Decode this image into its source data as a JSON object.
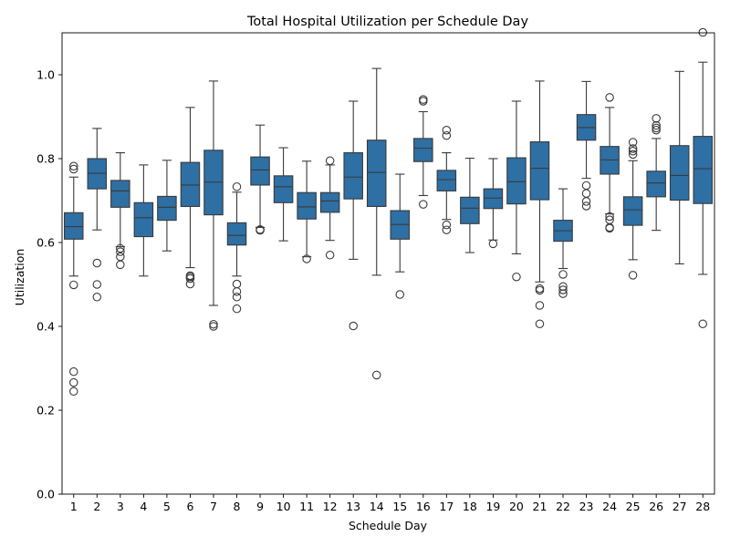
{
  "chart_data": {
    "type": "box",
    "title": "Total Hospital Utilization per Schedule Day",
    "xlabel": "Schedule Day",
    "ylabel": "Utilization",
    "ylim": [
      0.0,
      1.1
    ],
    "yticks": [
      "0.0",
      "0.2",
      "0.4",
      "0.6",
      "0.8",
      "1.0"
    ],
    "grid": false,
    "box_color": "#2e6fa4",
    "line_color": "#3a3a3a",
    "categories": [
      "1",
      "2",
      "3",
      "4",
      "5",
      "6",
      "7",
      "8",
      "9",
      "10",
      "11",
      "12",
      "13",
      "14",
      "15",
      "16",
      "17",
      "18",
      "19",
      "20",
      "21",
      "22",
      "23",
      "24",
      "25",
      "26",
      "27",
      "28"
    ],
    "boxes": [
      {
        "day": "1",
        "whislo": 0.52,
        "q1": 0.608,
        "med": 0.638,
        "q3": 0.671,
        "whishi": 0.756,
        "fliers": [
          0.499,
          0.292,
          0.266,
          0.245,
          0.775,
          0.782
        ]
      },
      {
        "day": "2",
        "whislo": 0.63,
        "q1": 0.728,
        "med": 0.765,
        "q3": 0.8,
        "whishi": 0.872,
        "fliers": [
          0.551,
          0.5,
          0.47
        ]
      },
      {
        "day": "3",
        "whislo": 0.59,
        "q1": 0.684,
        "med": 0.723,
        "q3": 0.748,
        "whishi": 0.814,
        "fliers": [
          0.586,
          0.578,
          0.566,
          0.547
        ]
      },
      {
        "day": "4",
        "whislo": 0.52,
        "q1": 0.614,
        "med": 0.659,
        "q3": 0.695,
        "whishi": 0.785,
        "fliers": []
      },
      {
        "day": "5",
        "whislo": 0.58,
        "q1": 0.653,
        "med": 0.684,
        "q3": 0.71,
        "whishi": 0.796,
        "fliers": []
      },
      {
        "day": "6",
        "whislo": 0.54,
        "q1": 0.686,
        "med": 0.737,
        "q3": 0.791,
        "whishi": 0.922,
        "fliers": [
          0.521,
          0.518,
          0.514,
          0.501
        ]
      },
      {
        "day": "7",
        "whislo": 0.45,
        "q1": 0.666,
        "med": 0.744,
        "q3": 0.82,
        "whishi": 0.985,
        "fliers": [
          0.405,
          0.4
        ]
      },
      {
        "day": "8",
        "whislo": 0.52,
        "q1": 0.594,
        "med": 0.617,
        "q3": 0.647,
        "whishi": 0.72,
        "fliers": [
          0.733,
          0.501,
          0.483,
          0.47,
          0.442
        ]
      },
      {
        "day": "9",
        "whislo": 0.636,
        "q1": 0.737,
        "med": 0.773,
        "q3": 0.804,
        "whishi": 0.88,
        "fliers": [
          0.631,
          0.629
        ]
      },
      {
        "day": "10",
        "whislo": 0.604,
        "q1": 0.695,
        "med": 0.733,
        "q3": 0.759,
        "whishi": 0.826,
        "fliers": []
      },
      {
        "day": "11",
        "whislo": 0.566,
        "q1": 0.656,
        "med": 0.685,
        "q3": 0.719,
        "whishi": 0.794,
        "fliers": [
          0.561
        ]
      },
      {
        "day": "12",
        "whislo": 0.605,
        "q1": 0.672,
        "med": 0.699,
        "q3": 0.719,
        "whishi": 0.785,
        "fliers": [
          0.795,
          0.57
        ]
      },
      {
        "day": "13",
        "whislo": 0.56,
        "q1": 0.704,
        "med": 0.756,
        "q3": 0.814,
        "whishi": 0.937,
        "fliers": [
          0.401
        ]
      },
      {
        "day": "14",
        "whislo": 0.522,
        "q1": 0.686,
        "med": 0.767,
        "q3": 0.844,
        "whishi": 1.015,
        "fliers": [
          0.284
        ]
      },
      {
        "day": "15",
        "whislo": 0.53,
        "q1": 0.608,
        "med": 0.643,
        "q3": 0.676,
        "whishi": 0.763,
        "fliers": [
          0.476
        ]
      },
      {
        "day": "16",
        "whislo": 0.712,
        "q1": 0.793,
        "med": 0.825,
        "q3": 0.848,
        "whishi": 0.912,
        "fliers": [
          0.941,
          0.937,
          0.691
        ]
      },
      {
        "day": "17",
        "whislo": 0.655,
        "q1": 0.723,
        "med": 0.75,
        "q3": 0.772,
        "whishi": 0.814,
        "fliers": [
          0.868,
          0.855,
          0.642,
          0.63
        ]
      },
      {
        "day": "18",
        "whislo": 0.576,
        "q1": 0.645,
        "med": 0.682,
        "q3": 0.708,
        "whishi": 0.801,
        "fliers": []
      },
      {
        "day": "19",
        "whislo": 0.606,
        "q1": 0.681,
        "med": 0.706,
        "q3": 0.728,
        "whishi": 0.8,
        "fliers": [
          0.597
        ]
      },
      {
        "day": "20",
        "whislo": 0.573,
        "q1": 0.692,
        "med": 0.745,
        "q3": 0.802,
        "whishi": 0.937,
        "fliers": [
          0.518
        ]
      },
      {
        "day": "21",
        "whislo": 0.506,
        "q1": 0.702,
        "med": 0.777,
        "q3": 0.84,
        "whishi": 0.985,
        "fliers": [
          0.49,
          0.486,
          0.45,
          0.406
        ]
      },
      {
        "day": "22",
        "whislo": 0.538,
        "q1": 0.603,
        "med": 0.628,
        "q3": 0.653,
        "whishi": 0.728,
        "fliers": [
          0.524,
          0.495,
          0.487,
          0.478
        ]
      },
      {
        "day": "23",
        "whislo": 0.753,
        "q1": 0.844,
        "med": 0.874,
        "q3": 0.905,
        "whishi": 0.984,
        "fliers": [
          0.736,
          0.717,
          0.698,
          0.687
        ]
      },
      {
        "day": "24",
        "whislo": 0.668,
        "q1": 0.763,
        "med": 0.797,
        "q3": 0.829,
        "whishi": 0.922,
        "fliers": [
          0.946,
          0.662,
          0.654,
          0.636,
          0.634
        ]
      },
      {
        "day": "25",
        "whislo": 0.559,
        "q1": 0.641,
        "med": 0.678,
        "q3": 0.709,
        "whishi": 0.795,
        "fliers": [
          0.839,
          0.824,
          0.818,
          0.81,
          0.522
        ]
      },
      {
        "day": "26",
        "whislo": 0.629,
        "q1": 0.709,
        "med": 0.742,
        "q3": 0.77,
        "whishi": 0.848,
        "fliers": [
          0.896,
          0.879,
          0.873,
          0.868
        ]
      },
      {
        "day": "27",
        "whislo": 0.549,
        "q1": 0.701,
        "med": 0.76,
        "q3": 0.831,
        "whishi": 1.008,
        "fliers": []
      },
      {
        "day": "28",
        "whislo": 0.524,
        "q1": 0.693,
        "med": 0.776,
        "q3": 0.853,
        "whishi": 1.03,
        "fliers": [
          1.101,
          0.406
        ]
      }
    ]
  }
}
